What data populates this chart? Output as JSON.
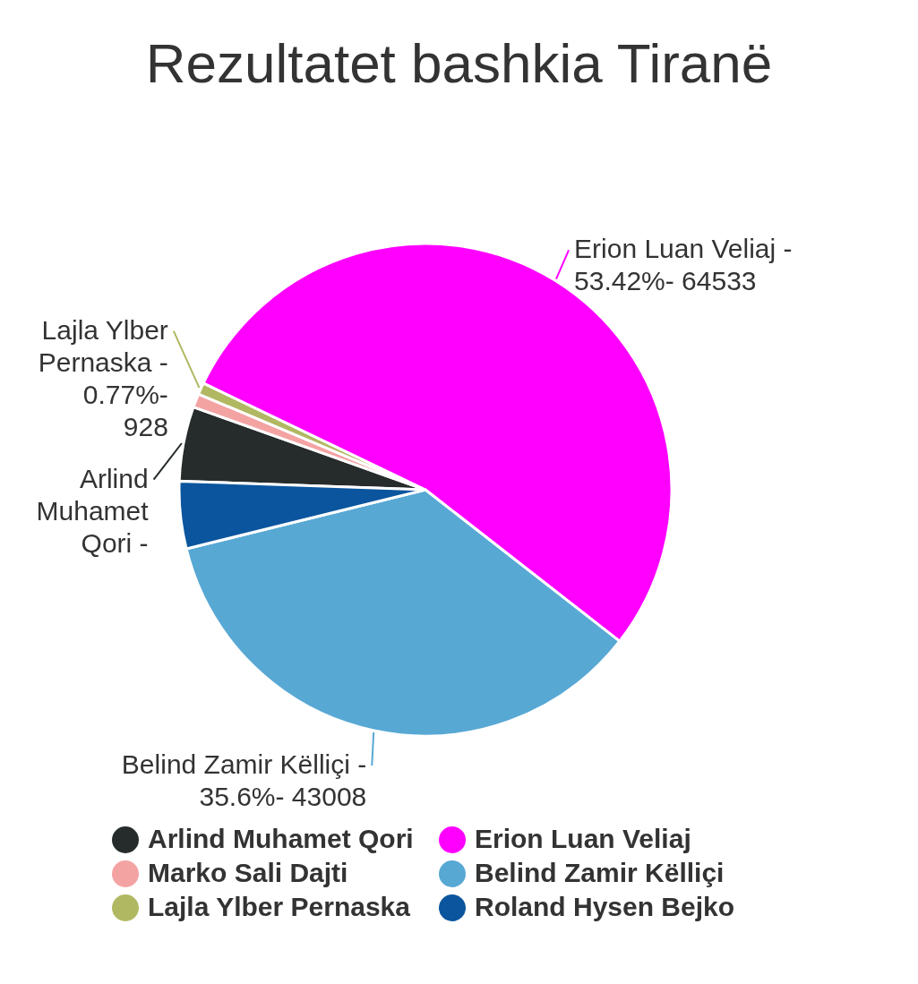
{
  "chart_data": {
    "type": "pie",
    "title": "Rezultatet bashkia Tiranë",
    "categories": [
      "Arlind Muhamet Qori",
      "Marko Sali Dajti",
      "Lajla Ylber Pernaska",
      "Erion Luan Veliaj",
      "Belind Zamir Këlliçi",
      "Roland Hysen Bejko"
    ],
    "values": [
      4.9,
      0.9,
      0.77,
      53.42,
      35.6,
      4.41
    ],
    "colors": [
      "#262b2b",
      "#f4a3a3",
      "#b1b862",
      "#ff00ff",
      "#58a8d4",
      "#0a559e"
    ],
    "value_labels": [
      "Arlind\nMuhamet\nQori -",
      null,
      "Lajla Ylber\nPernaska -\n0.77%-\n928",
      "Erion Luan Veliaj -\n53.42%- 64533",
      "Belind Zamir Këlliçi -\n35.6%- 43008",
      null
    ],
    "legend": "bottom"
  }
}
